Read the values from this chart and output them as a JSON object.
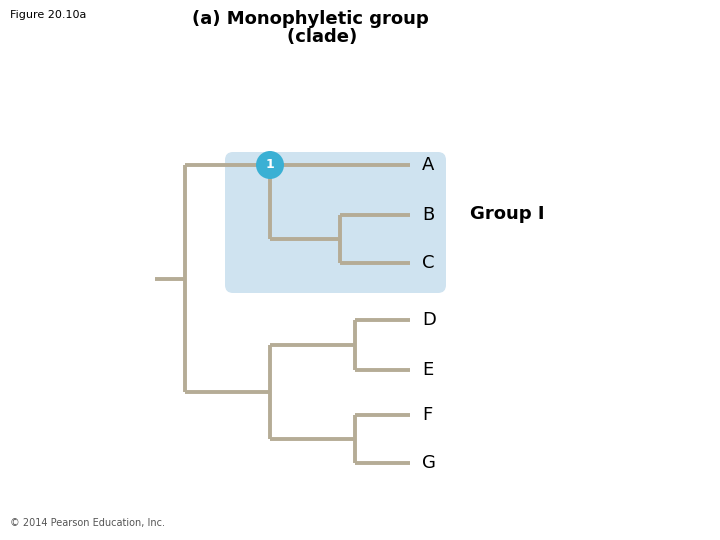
{
  "title_line1": "(a) Monophyletic group",
  "title_line2": "    (clade)",
  "figure_label": "Figure 20.10a",
  "copyright": "© 2014 Pearson Education, Inc.",
  "group_label": "Group I",
  "node_label": "1",
  "taxa": [
    "A",
    "B",
    "C",
    "D",
    "E",
    "F",
    "G"
  ],
  "tree_color": "#b5ac96",
  "highlight_color": "#cfe3f0",
  "node_circle_color": "#3ab0d4",
  "node_circle_text_color": "#ffffff",
  "background_color": "#ffffff",
  "line_width": 2.8,
  "fig_width": 7.2,
  "fig_height": 5.4,
  "xlim": [
    0,
    720
  ],
  "ylim": [
    0,
    540
  ]
}
